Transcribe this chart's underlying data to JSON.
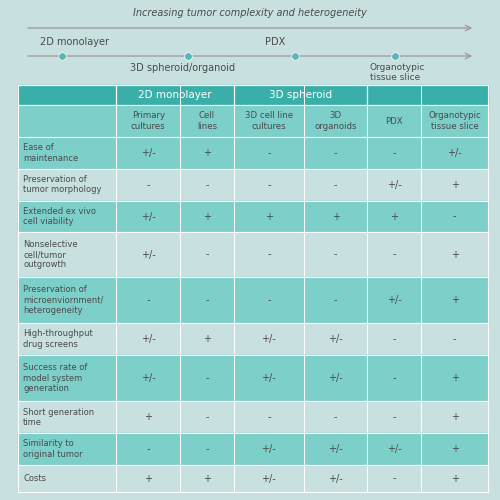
{
  "title": "Increasing tumor complexity and heterogeneity",
  "bg_color": "#c8e0df",
  "header_color": "#3aafa9",
  "cell_color_teal": "#7dcfca",
  "text_color": "#4a4a4a",
  "arrow_color": "#999999",
  "dot_color": "#5ab8b4",
  "col_headers_level2": [
    "Primary\ncultures",
    "Cell\nlines",
    "3D cell line\ncultures",
    "3D\norganoids",
    "PDX",
    "Organotypic\ntissue slice"
  ],
  "row_labels": [
    "Ease of\nmaintenance",
    "Preservation of\ntumor morphology",
    "Extended ex vivo\ncell viability",
    "Nonselective\ncell/tumor\noutgrowth",
    "Preservation of\nmicroenviornment/\nheterogeneity",
    "High-throughput\ndrug screens",
    "Success rate of\nmodel system\ngeneration",
    "Short generation\ntime",
    "Similarity to\noriginal tumor",
    "Costs"
  ],
  "table_data": [
    [
      "+/-",
      "+",
      "-",
      "-",
      "-",
      "+/-"
    ],
    [
      "-",
      "-",
      "-",
      "-",
      "+/-",
      "+"
    ],
    [
      "+/-",
      "+",
      "+",
      "+",
      "+",
      "-"
    ],
    [
      "+/-",
      "-",
      "-",
      "-",
      "-",
      "+"
    ],
    [
      "-",
      "-",
      "-",
      "-",
      "+/-",
      "+"
    ],
    [
      "+/-",
      "+",
      "+/-",
      "+/-",
      "-",
      "-"
    ],
    [
      "+/-",
      "-",
      "+/-",
      "+/-",
      "-",
      "+"
    ],
    [
      "+",
      "-",
      "-",
      "-",
      "-",
      "+"
    ],
    [
      "-",
      "-",
      "+/-",
      "+/-",
      "+/-",
      "+"
    ],
    [
      "+",
      "+",
      "+/-",
      "+/-",
      "-",
      "+"
    ]
  ]
}
